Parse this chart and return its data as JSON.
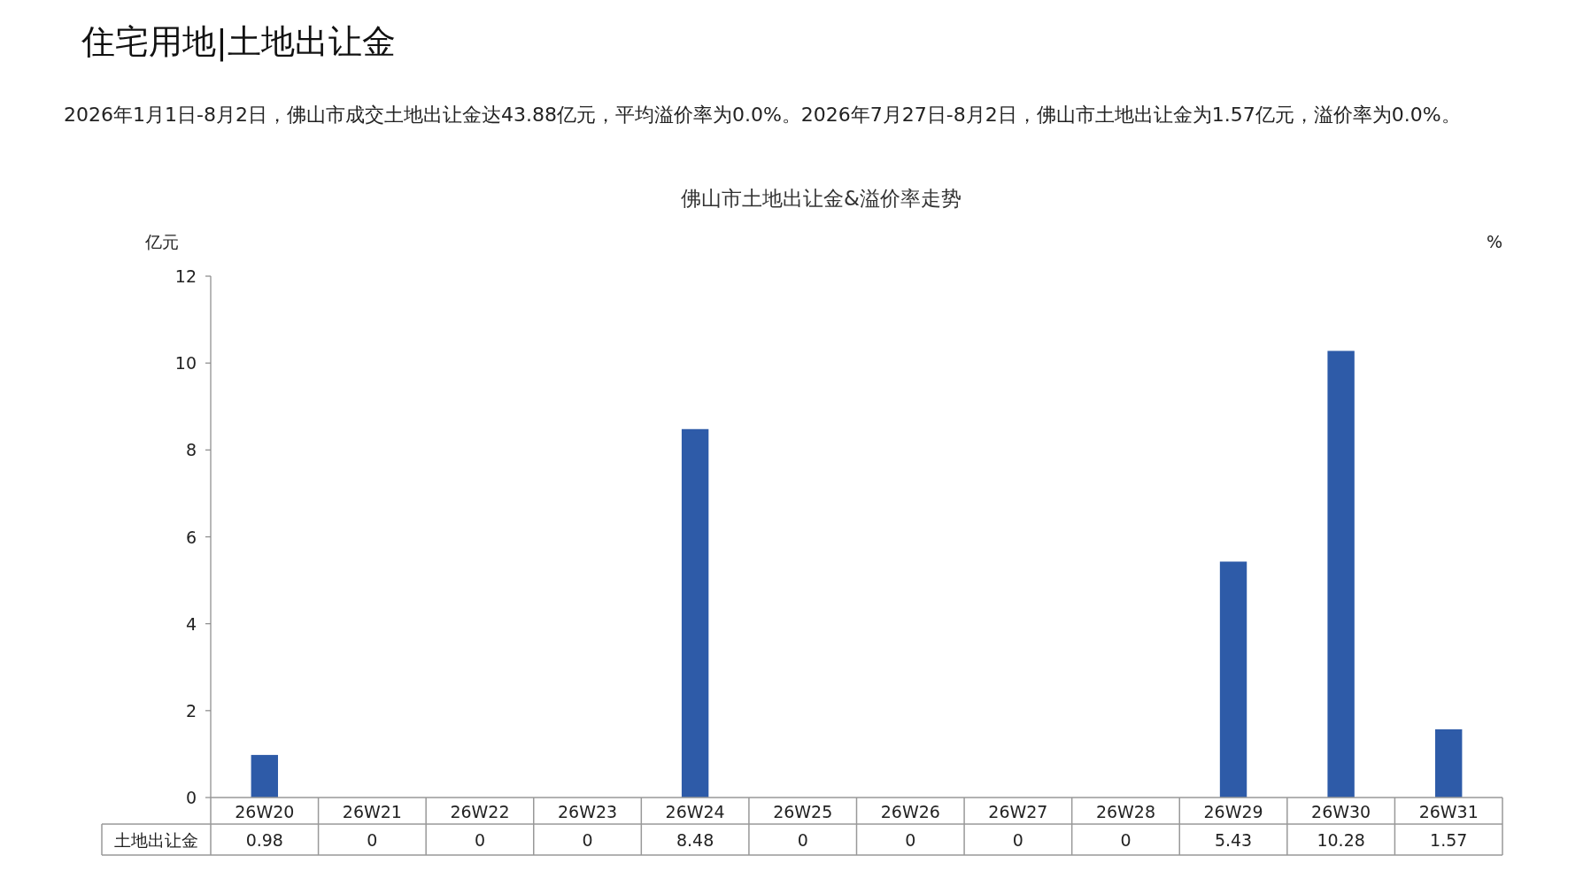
{
  "chart_data": {
    "type": "bar",
    "title": "住宅用地|土地出让金",
    "subtitle": "佛山市土地出让金&溢价率走势",
    "annotations": [
      "2026年1月1日-8月2日，佛山市成交土地出让金达43.88亿元，平均溢价率为0.0%。2026年7月27日-8月2日，佛山市土地出让金为1.57亿元，溢价率为0.0%。"
    ],
    "ylabel": "亿元",
    "y2label": "%",
    "categories": [
      "26W20",
      "26W21",
      "26W22",
      "26W23",
      "26W24",
      "26W25",
      "26W26",
      "26W27",
      "26W28",
      "26W29",
      "26W30",
      "26W31"
    ],
    "series": [
      {
        "name": "土地出让金",
        "color": "#2e5ba8",
        "values": [
          0.98,
          0,
          0,
          0,
          8.48,
          0,
          0,
          0,
          0,
          5.43,
          10.28,
          1.57
        ]
      }
    ],
    "ylim": [
      0,
      12
    ],
    "yticks": [
      0,
      2,
      4,
      6,
      8,
      10,
      12
    ],
    "data_labels": true
  }
}
